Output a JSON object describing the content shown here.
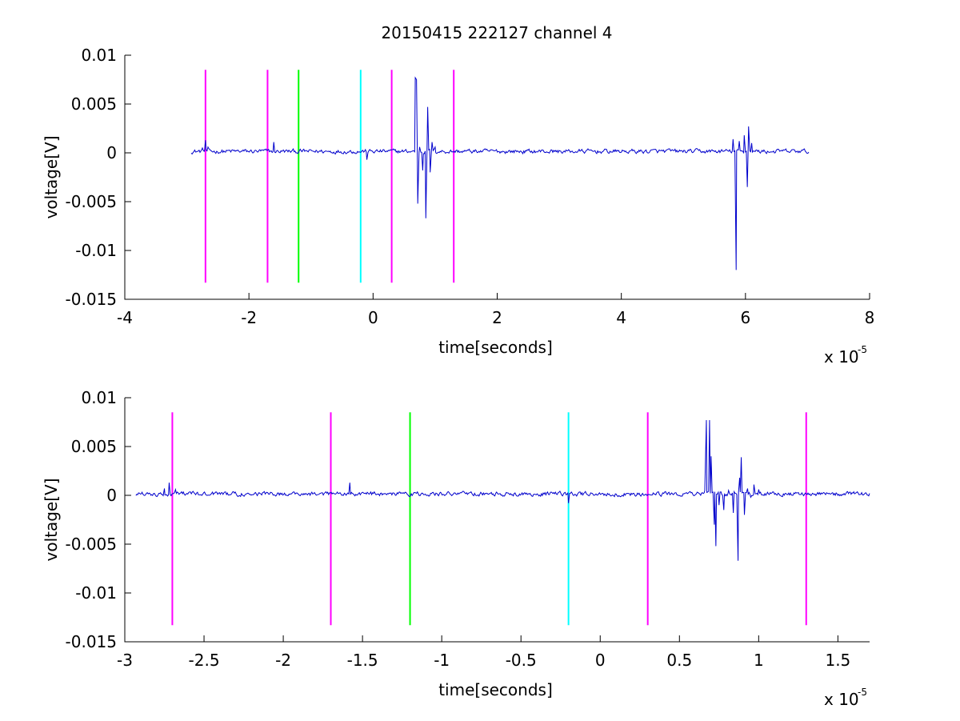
{
  "chart_data": [
    {
      "type": "line",
      "title": "20150415 222127 channel 4",
      "xlabel": "time[seconds]",
      "ylabel": "voltage[V]",
      "x_exponent_label": "x 10",
      "x_exponent_power": "-5",
      "xlim": [
        -4,
        8
      ],
      "ylim": [
        -0.015,
        0.01
      ],
      "xticks": [
        "-4",
        "-2",
        "0",
        "2",
        "4",
        "6",
        "8"
      ],
      "xtick_values": [
        -4,
        -2,
        0,
        2,
        4,
        6,
        8
      ],
      "yticks": [
        "0.01",
        "0.005",
        "0",
        "-0.005",
        "-0.01",
        "-0.015"
      ],
      "ytick_values": [
        0.01,
        0.005,
        0,
        -0.005,
        -0.01,
        -0.015
      ],
      "markers": [
        {
          "x": -2.7,
          "y_range": [
            -0.0133,
            0.0085
          ],
          "color": "#ff00ff"
        },
        {
          "x": -1.7,
          "y_range": [
            -0.0133,
            0.0085
          ],
          "color": "#ff00ff"
        },
        {
          "x": -1.2,
          "y_range": [
            -0.0133,
            0.0085
          ],
          "color": "#00ff00"
        },
        {
          "x": -0.2,
          "y_range": [
            -0.0133,
            0.0085
          ],
          "color": "#00ffff"
        },
        {
          "x": 0.3,
          "y_range": [
            -0.0133,
            0.0085
          ],
          "color": "#ff00ff"
        },
        {
          "x": 1.3,
          "y_range": [
            -0.0133,
            0.0085
          ],
          "color": "#ff00ff"
        }
      ],
      "series": [
        {
          "color": "#0000cc",
          "x_range": [
            -2.93,
            7.02
          ],
          "baseline": 0.00015,
          "noise_amplitude": 0.0004,
          "bumps": [
            {
              "x": -2.75,
              "y": 0.0005
            },
            {
              "x": -2.7,
              "y": 0.0013
            },
            {
              "x": -2.66,
              "y": 0.0006
            },
            {
              "x": -1.6,
              "y": 0.0011
            },
            {
              "x": -0.1,
              "y": -0.0007
            },
            {
              "x": 0.68,
              "y": 0.0077
            },
            {
              "x": 0.7,
              "y": 0.0075
            },
            {
              "x": 0.72,
              "y": -0.0052
            },
            {
              "x": 0.75,
              "y": 0.0006
            },
            {
              "x": 0.8,
              "y": -0.0018
            },
            {
              "x": 0.85,
              "y": -0.0067
            },
            {
              "x": 0.88,
              "y": 0.0047
            },
            {
              "x": 0.92,
              "y": -0.002
            },
            {
              "x": 0.95,
              "y": 0.0011
            },
            {
              "x": 1.0,
              "y": 0.0006
            },
            {
              "x": 5.8,
              "y": 0.0014
            },
            {
              "x": 5.85,
              "y": -0.012
            },
            {
              "x": 5.9,
              "y": 0.0012
            },
            {
              "x": 5.98,
              "y": 0.0018
            },
            {
              "x": 6.03,
              "y": -0.0035
            },
            {
              "x": 6.05,
              "y": 0.0027
            },
            {
              "x": 6.1,
              "y": 0.001
            }
          ]
        }
      ]
    },
    {
      "type": "line",
      "title": "",
      "xlabel": "time[seconds]",
      "ylabel": "voltage[V]",
      "x_exponent_label": "x 10",
      "x_exponent_power": "-5",
      "xlim": [
        -3.0,
        1.7
      ],
      "ylim": [
        -0.015,
        0.01
      ],
      "xticks": [
        "-3",
        "-2.5",
        "-2",
        "-1.5",
        "-1",
        "-0.5",
        "0",
        "0.5",
        "1",
        "1.5"
      ],
      "xtick_values": [
        -3,
        -2.5,
        -2,
        -1.5,
        -1,
        -0.5,
        0,
        0.5,
        1,
        1.5
      ],
      "yticks": [
        "0.01",
        "0.005",
        "0",
        "-0.005",
        "-0.01",
        "-0.015"
      ],
      "ytick_values": [
        0.01,
        0.005,
        0,
        -0.005,
        -0.01,
        -0.015
      ],
      "markers": [
        {
          "x": -2.7,
          "y_range": [
            -0.0133,
            0.0085
          ],
          "color": "#ff00ff"
        },
        {
          "x": -1.7,
          "y_range": [
            -0.0133,
            0.0085
          ],
          "color": "#ff00ff"
        },
        {
          "x": -1.2,
          "y_range": [
            -0.0133,
            0.0085
          ],
          "color": "#00ff00"
        },
        {
          "x": -0.2,
          "y_range": [
            -0.0133,
            0.0085
          ],
          "color": "#00ffff"
        },
        {
          "x": 0.3,
          "y_range": [
            -0.0133,
            0.0085
          ],
          "color": "#ff00ff"
        },
        {
          "x": 1.3,
          "y_range": [
            -0.0133,
            0.0085
          ],
          "color": "#ff00ff"
        }
      ],
      "series": [
        {
          "color": "#0000cc",
          "x_range": [
            -2.93,
            1.7
          ],
          "baseline": 0.00015,
          "noise_amplitude": 0.0004,
          "bumps": [
            {
              "x": -2.75,
              "y": 0.0007
            },
            {
              "x": -2.72,
              "y": 0.0013
            },
            {
              "x": -2.68,
              "y": 0.0006
            },
            {
              "x": -1.58,
              "y": 0.0013
            },
            {
              "x": -0.2,
              "y": -0.0008
            },
            {
              "x": 0.66,
              "y": 0.0005
            },
            {
              "x": 0.67,
              "y": 0.0077
            },
            {
              "x": 0.69,
              "y": 0.0077
            },
            {
              "x": 0.7,
              "y": 0.004
            },
            {
              "x": 0.72,
              "y": -0.003
            },
            {
              "x": 0.73,
              "y": -0.0052
            },
            {
              "x": 0.75,
              "y": -0.001
            },
            {
              "x": 0.78,
              "y": -0.0015
            },
            {
              "x": 0.81,
              "y": 0.0005
            },
            {
              "x": 0.84,
              "y": -0.0018
            },
            {
              "x": 0.87,
              "y": -0.0067
            },
            {
              "x": 0.88,
              "y": 0.0018
            },
            {
              "x": 0.89,
              "y": 0.0039
            },
            {
              "x": 0.91,
              "y": -0.002
            },
            {
              "x": 0.93,
              "y": 0.0007
            },
            {
              "x": 0.95,
              "y": -0.0002
            },
            {
              "x": 0.97,
              "y": 0.0011
            },
            {
              "x": 1.0,
              "y": 0.0006
            }
          ]
        }
      ]
    }
  ]
}
